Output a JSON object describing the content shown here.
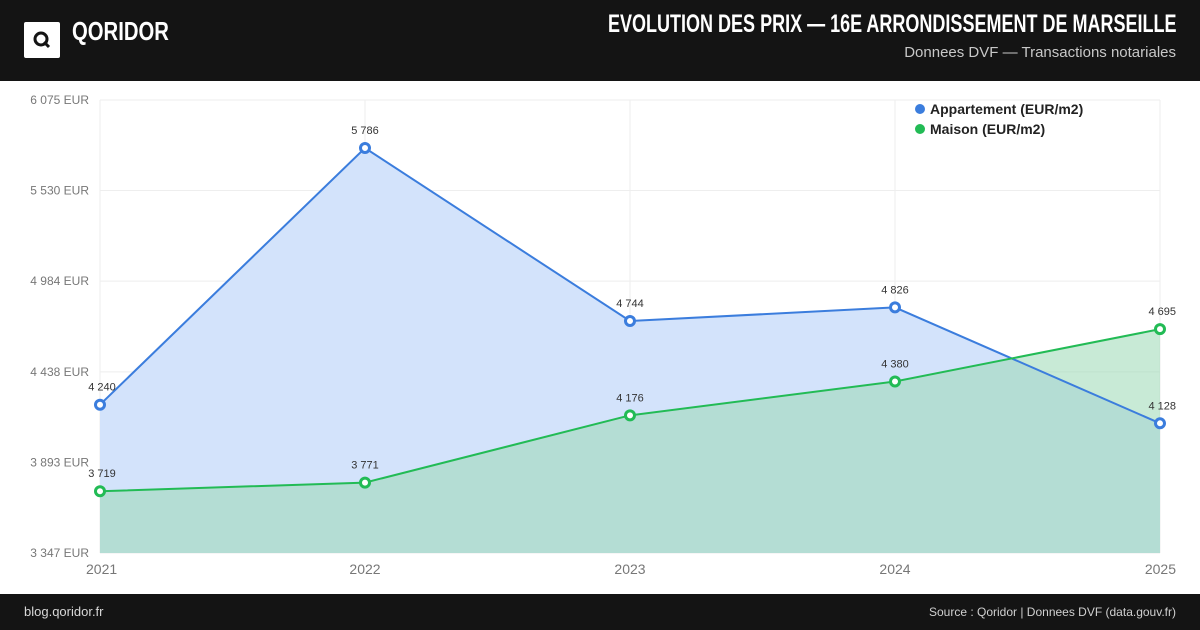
{
  "header": {
    "brand": "QORIDOR",
    "title": "EVOLUTION DES PRIX — 16E ARRONDISSEMENT DE MARSEILLE",
    "subtitle": "Donnees DVF — Transactions notariales"
  },
  "footer": {
    "left": "blog.qoridor.fr",
    "right": "Source : Qoridor | Donnees DVF (data.gouv.fr)"
  },
  "colors": {
    "appartement": "#3b7ddd",
    "appartement_fill": "#d3e3fb",
    "maison": "#22bb55",
    "maison_fill": "#d0f2dc",
    "overlap_fill": "#b0ddd9"
  },
  "chart_data": {
    "type": "area",
    "title": "",
    "xlabel": "",
    "ylabel": "",
    "x": [
      "2021",
      "2022",
      "2023",
      "2024",
      "2025"
    ],
    "ylim": [
      3347,
      6075
    ],
    "yticks": [
      3347,
      3893,
      4438,
      4984,
      5530,
      6075
    ],
    "ytick_labels": [
      "3 347 EUR",
      "3 893 EUR",
      "4 438 EUR",
      "4 984 EUR",
      "5 530 EUR",
      "6 075 EUR"
    ],
    "grid": true,
    "legend_position": "top-right",
    "series": [
      {
        "name": "Appartement (EUR/m2)",
        "values": [
          4240,
          5786,
          4744,
          4826,
          4128
        ],
        "labels": [
          "4 240",
          "5 786",
          "4 744",
          "4 826",
          "4 128"
        ]
      },
      {
        "name": "Maison (EUR/m2)",
        "values": [
          3719,
          3771,
          4176,
          4380,
          4695
        ],
        "labels": [
          "3 719",
          "3 771",
          "4 176",
          "4 380",
          "4 695"
        ]
      }
    ]
  }
}
